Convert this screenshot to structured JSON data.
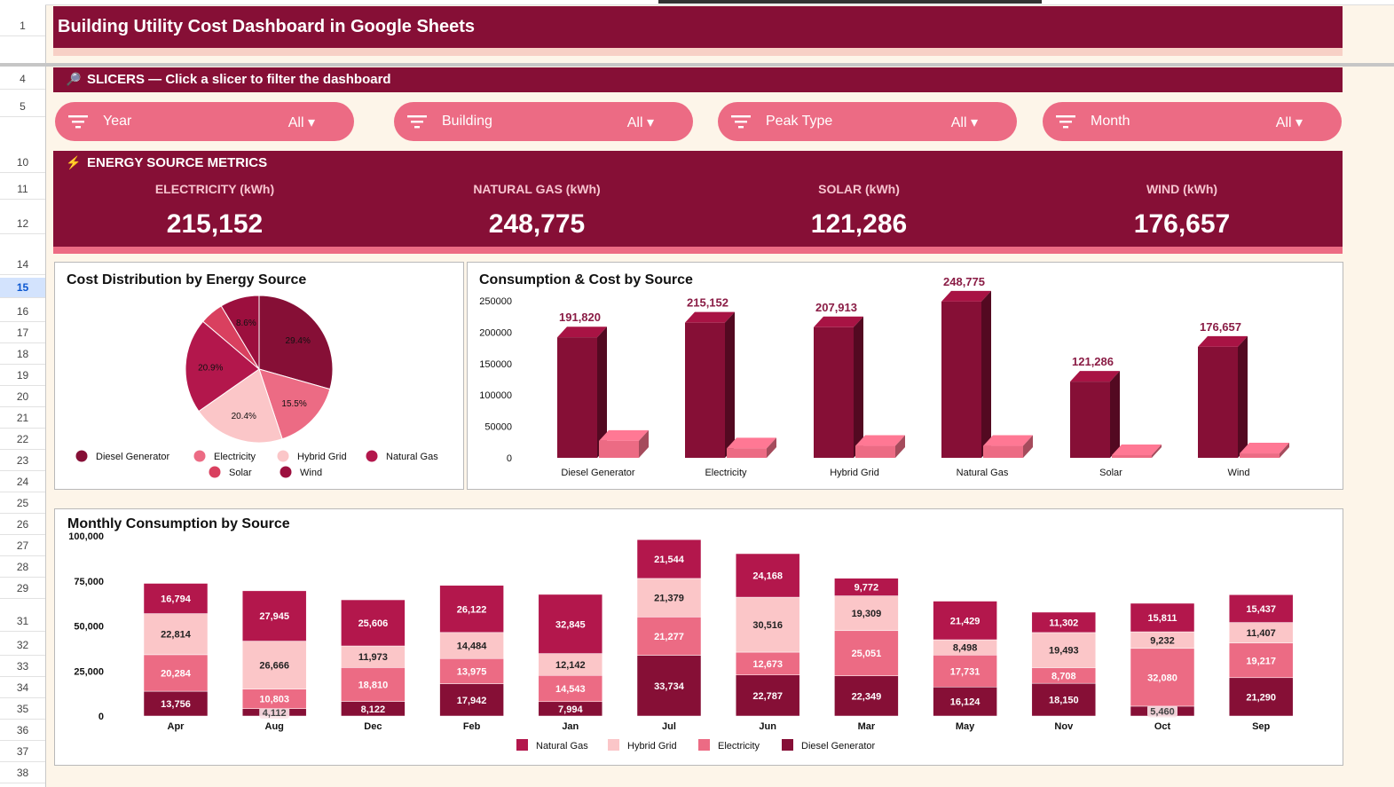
{
  "title": "Building Utility Cost Dashboard in Google Sheets",
  "row_numbers": [
    {
      "n": "1",
      "top": 23
    },
    {
      "n": "4",
      "top": 83
    },
    {
      "n": "5",
      "top": 114
    },
    {
      "n": "10",
      "top": 177
    },
    {
      "n": "11",
      "top": 207
    },
    {
      "n": "12",
      "top": 246
    },
    {
      "n": "14",
      "top": 292
    },
    {
      "n": "15",
      "top": 318,
      "sel": true
    },
    {
      "n": "16",
      "top": 345
    },
    {
      "n": "17",
      "top": 369
    },
    {
      "n": "18",
      "top": 393
    },
    {
      "n": "19",
      "top": 417
    },
    {
      "n": "20",
      "top": 441
    },
    {
      "n": "21",
      "top": 465
    },
    {
      "n": "22",
      "top": 489
    },
    {
      "n": "23",
      "top": 513
    },
    {
      "n": "24",
      "top": 537
    },
    {
      "n": "25",
      "top": 561
    },
    {
      "n": "26",
      "top": 585
    },
    {
      "n": "27",
      "top": 609
    },
    {
      "n": "28",
      "top": 633
    },
    {
      "n": "29",
      "top": 657
    },
    {
      "n": "31",
      "top": 694
    },
    {
      "n": "32",
      "top": 721
    },
    {
      "n": "33",
      "top": 745
    },
    {
      "n": "34",
      "top": 769
    },
    {
      "n": "35",
      "top": 793
    },
    {
      "n": "36",
      "top": 817
    },
    {
      "n": "37",
      "top": 841
    },
    {
      "n": "38",
      "top": 865
    }
  ],
  "slicers_section": {
    "icon": "magnifier-icon",
    "label": "SLICERS — Click a slicer to filter the dashboard"
  },
  "slicers": [
    {
      "label": "Year",
      "value": "All ▾"
    },
    {
      "label": "Building",
      "value": "All ▾"
    },
    {
      "label": "Peak Type",
      "value": "All ▾"
    },
    {
      "label": "Month",
      "value": "All ▾"
    }
  ],
  "metrics_section": {
    "icon": "lightning-icon",
    "label": "ENERGY SOURCE METRICS"
  },
  "kpis": [
    {
      "label": "ELECTRICITY (kWh)",
      "value": "215,152"
    },
    {
      "label": "NATURAL GAS (kWh)",
      "value": "248,775"
    },
    {
      "label": "SOLAR (kWh)",
      "value": "121,286"
    },
    {
      "label": "WIND (kWh)",
      "value": "176,657"
    }
  ],
  "colors": {
    "dark": "#860f36",
    "mid": "#b3174c",
    "pink": "#ec6b84",
    "light": "#fbc6c8",
    "bg": "#fdf5e9"
  },
  "chart_data": [
    {
      "type": "pie",
      "title": "Cost Distribution by Energy Source",
      "slices": [
        {
          "name": "Diesel Generator",
          "value": 29.4,
          "label": "29.4%",
          "color": "#860f36"
        },
        {
          "name": "Electricity",
          "value": 15.5,
          "label": "15.5%",
          "color": "#ec6b84"
        },
        {
          "name": "Hybrid Grid",
          "value": 20.4,
          "label": "20.4%",
          "color": "#fbc6c8"
        },
        {
          "name": "Natural Gas",
          "value": 20.9,
          "label": "20.9%",
          "color": "#b3174c"
        },
        {
          "name": "Solar",
          "value": 5.2,
          "label": "",
          "color": "#d9405f"
        },
        {
          "name": "Wind",
          "value": 8.6,
          "label": "8.6%",
          "color": "#9c0f3e"
        }
      ],
      "legend_position": "bottom"
    },
    {
      "type": "bar",
      "title": "Consumption & Cost by Source",
      "categories": [
        "Diesel Generator",
        "Electricity",
        "Hybrid Grid",
        "Natural Gas",
        "Solar",
        "Wind"
      ],
      "series": [
        {
          "values": [
            191820,
            215152,
            207913,
            248775,
            121286,
            176657
          ],
          "labels": [
            "191,820",
            "215,152",
            "207,913",
            "248,775",
            "121,286",
            "176,657"
          ],
          "color": "#860f36"
        },
        {
          "values": [
            27000,
            15000,
            19000,
            19000,
            4000,
            7000
          ],
          "color": "#ec6b84"
        }
      ],
      "yticks": [
        "250000",
        "200000",
        "150000",
        "100000",
        "50000",
        "0"
      ],
      "ylim": [
        0,
        250000
      ]
    },
    {
      "type": "bar",
      "stacked": true,
      "title": "Monthly Consumption by Source",
      "categories": [
        "Apr",
        "Aug",
        "Dec",
        "Feb",
        "Jan",
        "Jul",
        "Jun",
        "Mar",
        "May",
        "Nov",
        "Oct",
        "Sep"
      ],
      "yticks": [
        "100,000",
        "75,000",
        "50,000",
        "25,000",
        "0"
      ],
      "ylim": [
        0,
        100000
      ],
      "series": [
        {
          "name": "Diesel Generator",
          "color": "#860f36",
          "values": [
            13756,
            4112,
            8122,
            17942,
            7994,
            33734,
            22787,
            22349,
            16124,
            18150,
            5460,
            21290
          ]
        },
        {
          "name": "Electricity",
          "color": "#ec6b84",
          "values": [
            20284,
            10803,
            18810,
            13975,
            14543,
            21277,
            12673,
            25051,
            17731,
            8708,
            32080,
            19217
          ]
        },
        {
          "name": "Hybrid Grid",
          "color": "#fbc6c8",
          "values": [
            22814,
            26666,
            11973,
            14484,
            12142,
            21379,
            30516,
            19309,
            8498,
            19493,
            9232,
            11407
          ]
        },
        {
          "name": "Natural Gas",
          "color": "#b3174c",
          "values": [
            16794,
            27945,
            25606,
            26122,
            32845,
            21544,
            24168,
            9772,
            21429,
            11302,
            15811,
            15437
          ]
        }
      ],
      "legend": [
        "Natural Gas",
        "Hybrid Grid",
        "Electricity",
        "Diesel Generator"
      ],
      "legend_position": "bottom"
    }
  ]
}
